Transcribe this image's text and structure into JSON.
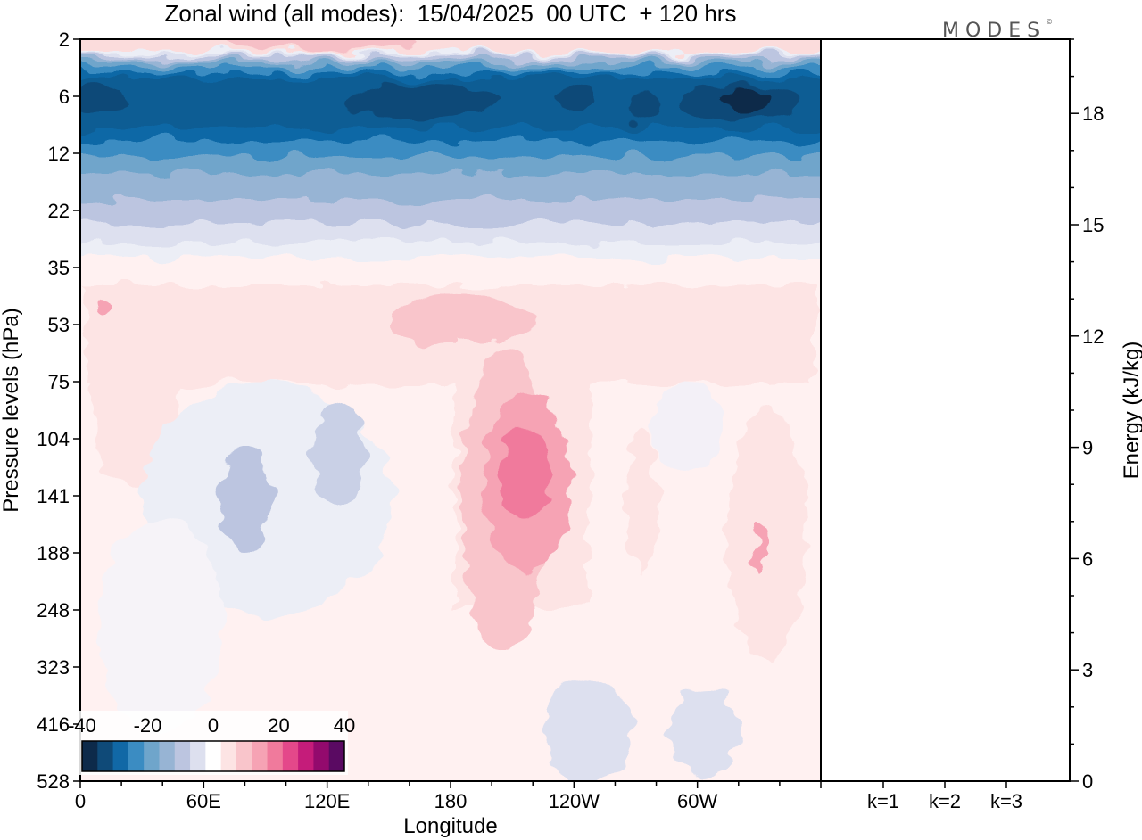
{
  "chart_data": {
    "type": "heatmap",
    "title": "Zonal wind (all modes):  15/04/2025  00 UTC  + 120 hrs",
    "logo": "MODES",
    "xlabel": "Longitude",
    "ylabel": "Pressure levels (hPa)",
    "x_ticks": [
      "0",
      "60E",
      "120E",
      "180",
      "120W",
      "60W"
    ],
    "x_tick_values": [
      0,
      60,
      120,
      180,
      240,
      300
    ],
    "x_range": [
      0,
      360
    ],
    "y_ticks": [
      "2",
      "6",
      "12",
      "22",
      "35",
      "53",
      "75",
      "104",
      "141",
      "188",
      "248",
      "323",
      "416",
      "528"
    ],
    "colorbar": {
      "tick_labels": [
        "-40",
        "-20",
        "0",
        "20",
        "40"
      ],
      "levels": [
        -40,
        -35,
        -30,
        -25,
        -20,
        -15,
        -10,
        -5,
        0,
        5,
        10,
        15,
        20,
        25,
        30,
        35,
        40
      ],
      "colors": [
        "#0d2a4a",
        "#0f4a78",
        "#1168a6",
        "#3b8cc2",
        "#6fa5cb",
        "#97b4d4",
        "#bcc5e0",
        "#dde0ef",
        "#ffffff",
        "#fde4e4",
        "#f9c5cb",
        "#f6a3b4",
        "#f07a9c",
        "#e4488a",
        "#c51c7a",
        "#930a6d",
        "#5a0a62"
      ]
    },
    "field": {
      "description_of_bands": "Easterlies (negative, blue) concentrated at 4-20 hPa across all longitudes, strongest near 6 hPa; weak westerlies (pink) above 2 hPa and from 35 hPa downwards; local maximum ~15-20 m/s near 160W at 104-141 hPa; weak easterlies near 60E-150E at 75-250 hPa.",
      "jet_levels": [
        "6",
        "12"
      ],
      "max_easterly": -40,
      "max_westerly": 20
    },
    "energy_panel": {
      "ylabel": "Energy (kJ/kg)",
      "y_ticks": [
        "0",
        "3",
        "6",
        "9",
        "12",
        "15",
        "18"
      ],
      "y_tick_values": [
        0,
        3,
        6,
        9,
        12,
        15,
        18
      ],
      "ylim": [
        0,
        20
      ],
      "categories": [
        "k=1",
        "k=2",
        "k=3"
      ],
      "values": [
        0.02,
        0.02,
        0.02
      ]
    }
  }
}
